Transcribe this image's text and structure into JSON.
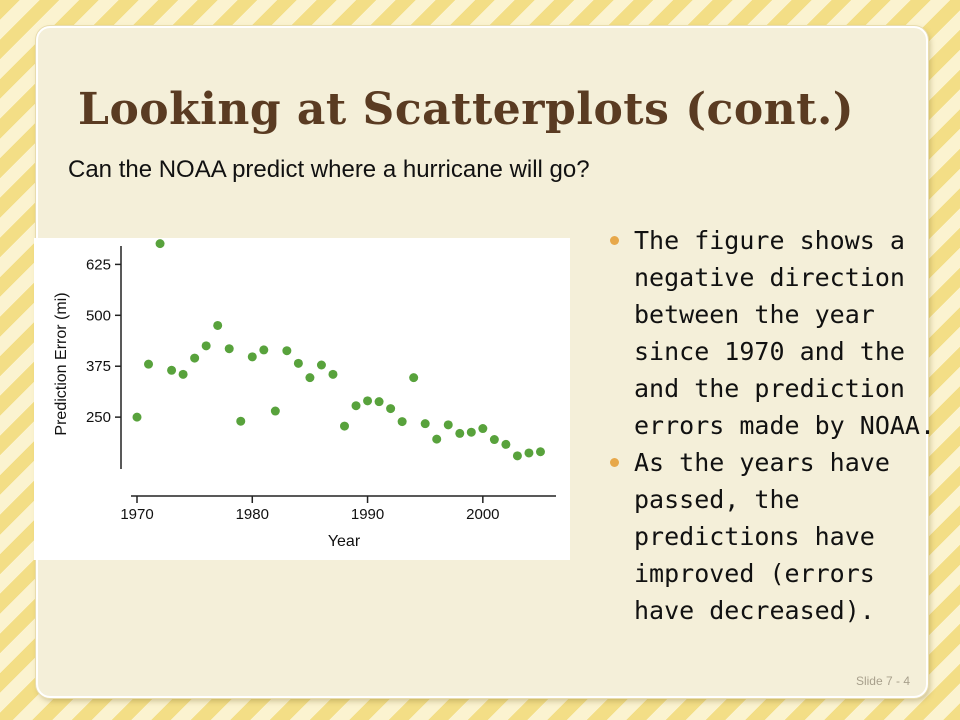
{
  "slide": {
    "title": "Looking at Scatterplots (cont.)",
    "subtitle": "Can the NOAA predict where a hurricane will go?",
    "bullets": [
      "The figure shows a negative direction between the year since 1970 and the and the prediction errors made by NOAA.",
      "As the years have passed, the predictions have improved (errors have decreased)."
    ],
    "slide_number": "Slide 7 - 4"
  },
  "colors": {
    "point": "#58a23c",
    "title": "#5a3b22",
    "bullet": "#e7a84a"
  },
  "chart_data": {
    "type": "scatter",
    "title": "",
    "xlabel": "Year",
    "ylabel": "Prediction Error (mi)",
    "xlim": [
      1970,
      2006
    ],
    "ylim": [
      130,
      680
    ],
    "xticks": [
      1970,
      1980,
      1990,
      2000
    ],
    "yticks": [
      250,
      375,
      500,
      625
    ],
    "grid": false,
    "series": [
      {
        "x": [
          1970,
          1971,
          1972,
          1973,
          1974,
          1975,
          1976,
          1977,
          1978,
          1979,
          1980,
          1981,
          1982,
          1983,
          1984,
          1985,
          1986,
          1987,
          1988,
          1989,
          1990,
          1991,
          1992,
          1993,
          1994,
          1995,
          1996,
          1997,
          1998,
          1999,
          2000,
          2001,
          2002,
          2003,
          2004,
          2005
        ],
        "y": [
          250,
          380,
          676,
          365,
          355,
          395,
          425,
          475,
          418,
          240,
          398,
          415,
          265,
          413,
          382,
          347,
          378,
          355,
          228,
          278,
          290,
          288,
          271,
          239,
          347,
          234,
          196,
          231,
          210,
          213,
          222,
          195,
          183,
          155,
          162,
          165
        ]
      }
    ]
  }
}
